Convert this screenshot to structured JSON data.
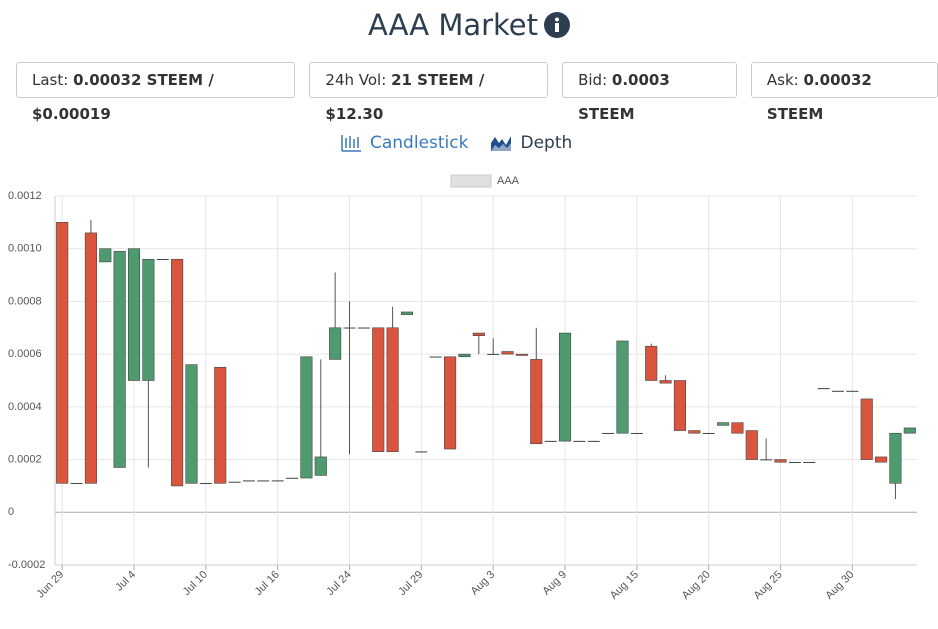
{
  "header": {
    "title": "AAA Market"
  },
  "stats": [
    {
      "label": "Last:",
      "value": "0.00032 STEEM / $0.00019"
    },
    {
      "label": "24h Vol:",
      "value": "21 STEEM / $12.30"
    },
    {
      "label": "Bid:",
      "value": "0.0003 STEEM"
    },
    {
      "label": "Ask:",
      "value": "0.00032 STEEM"
    }
  ],
  "tabs": [
    {
      "label": "Candlestick",
      "active": true
    },
    {
      "label": "Depth",
      "active": false
    }
  ],
  "chart_data": {
    "type": "candlestick",
    "categories": [
      "Jun 29",
      null,
      null,
      null,
      null,
      "Jul 4",
      null,
      null,
      null,
      null,
      "Jul 10",
      null,
      null,
      null,
      null,
      "Jul 16",
      null,
      null,
      null,
      null,
      "Jul 24",
      null,
      null,
      null,
      null,
      "Jul 29",
      null,
      null,
      null,
      null,
      "Aug 3",
      null,
      null,
      null,
      null,
      "Aug 9",
      null,
      null,
      null,
      null,
      "Aug 15",
      null,
      null,
      null,
      null,
      "Aug 20",
      null,
      null,
      null,
      null,
      "Aug 25",
      null,
      null,
      null,
      null,
      "Aug 30",
      null,
      null,
      null,
      null
    ],
    "series": [
      {
        "name": "AAA",
        "legend_color": "#e0e0e0",
        "up_color": "#4f9a6e",
        "down_color": "#d9553d",
        "open": [
          0.0011,
          0.00011,
          0.00106,
          0.00095,
          0.00017,
          0.0005,
          0.0005,
          0.00096,
          0.00096,
          0.00011,
          0.00011,
          0.00055,
          0.000115,
          0.00012,
          0.00012,
          0.00012,
          0.00013,
          0.00013,
          0.00014,
          0.00058,
          0.0007,
          0.0007,
          0.0007,
          0.0007,
          0.00075,
          0.00023,
          0.00059,
          0.00059,
          0.00059,
          0.00068,
          0.0006,
          0.00061,
          0.0006,
          0.00058,
          0.00027,
          0.00027,
          0.00027,
          0.00027,
          0.0003,
          0.0003,
          0.0003,
          0.00063,
          0.0005,
          0.0005,
          0.00031,
          0.0003,
          0.00033,
          0.00034,
          0.00031,
          0.0002,
          0.0002,
          0.00019,
          0.00019,
          0.00047,
          0.00046,
          0.00046,
          0.00043,
          0.00021,
          0.00011,
          0.0003
        ],
        "high": [
          0.0011,
          0.00011,
          0.00111,
          0.001,
          0.00099,
          0.001,
          0.00096,
          0.00096,
          0.00096,
          0.00056,
          0.00011,
          0.00055,
          0.000115,
          0.00012,
          0.00012,
          0.00012,
          0.00013,
          0.00059,
          0.00058,
          0.00091,
          0.0008,
          0.0007,
          0.0007,
          0.00078,
          0.00076,
          0.00023,
          0.00059,
          0.00059,
          0.0006,
          0.00068,
          0.00066,
          0.00061,
          0.0006,
          0.0007,
          0.00027,
          0.00068,
          0.00027,
          0.00027,
          0.0003,
          0.00065,
          0.0003,
          0.00064,
          0.00052,
          0.0005,
          0.00031,
          0.0003,
          0.00034,
          0.00034,
          0.00031,
          0.00028,
          0.0002,
          0.00019,
          0.00019,
          0.00047,
          0.00046,
          0.00046,
          0.00043,
          0.00021,
          0.0003,
          0.00032
        ],
        "low": [
          0.00011,
          0.00011,
          0.00011,
          0.00095,
          0.00017,
          0.0005,
          0.00017,
          0.00096,
          0.0001,
          0.00011,
          0.00011,
          0.00011,
          0.000115,
          0.00012,
          0.00012,
          0.00012,
          0.00013,
          0.00013,
          0.00014,
          0.00058,
          0.00022,
          0.0007,
          0.00023,
          0.00023,
          0.00075,
          0.00023,
          0.00059,
          0.00024,
          0.00059,
          0.0006,
          0.0006,
          0.0006,
          0.000595,
          0.00026,
          0.00027,
          0.00027,
          0.00027,
          0.00027,
          0.0003,
          0.0003,
          0.0003,
          0.0005,
          0.00049,
          0.00031,
          0.0003,
          0.0003,
          0.00033,
          0.0003,
          0.0002,
          0.0002,
          0.00019,
          0.00019,
          0.00019,
          0.00047,
          0.00046,
          0.00046,
          0.0002,
          0.00019,
          5e-05,
          0.0003
        ],
        "close": [
          0.00011,
          0.00011,
          0.00011,
          0.001,
          0.00099,
          0.001,
          0.00096,
          0.00096,
          0.0001,
          0.00056,
          0.00011,
          0.00011,
          0.000115,
          0.00012,
          0.00012,
          0.00012,
          0.00013,
          0.00059,
          0.00021,
          0.0007,
          0.0007,
          0.0007,
          0.00023,
          0.00023,
          0.00076,
          0.00023,
          0.00059,
          0.00024,
          0.0006,
          0.00067,
          0.0006,
          0.0006,
          0.000595,
          0.00026,
          0.00027,
          0.00068,
          0.00027,
          0.00027,
          0.0003,
          0.00065,
          0.0003,
          0.0005,
          0.00049,
          0.00031,
          0.0003,
          0.0003,
          0.00034,
          0.0003,
          0.0002,
          0.0002,
          0.00019,
          0.00019,
          0.00019,
          0.00047,
          0.00046,
          0.00046,
          0.0002,
          0.00019,
          0.0003,
          0.00032
        ]
      }
    ],
    "ylim": [
      -0.0002,
      0.0012
    ],
    "yticks": [
      -0.0002,
      0,
      0.0002,
      0.0004,
      0.0006,
      0.0008,
      {
        "value": 0.001,
        "label": "0.0010"
      },
      0.0012
    ],
    "grid": true,
    "legend": "top"
  }
}
